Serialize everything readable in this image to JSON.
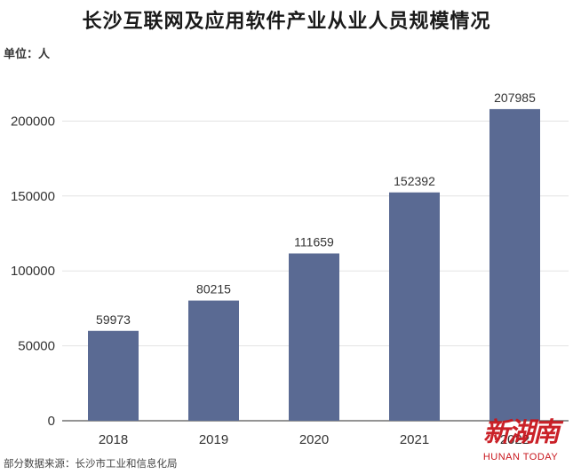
{
  "header": {
    "title": "长沙互联网及应用软件产业从业人员规模情况",
    "unit": "单位：人"
  },
  "footer": {
    "source": "部分数据来源：长沙市工业和信息化局"
  },
  "watermark": {
    "logo_text": "新湖南",
    "subtitle": "HUNAN TODAY"
  },
  "colors": {
    "bar": "#5a6a93",
    "grid": "#e3e3e3",
    "axis": "#555555",
    "watermark": "#c8161d"
  },
  "chart_data": {
    "type": "bar",
    "title": "长沙互联网及应用软件产业从业人员规模情况",
    "ylabel": "单位：人",
    "categories": [
      "2018",
      "2019",
      "2020",
      "2021",
      "2022"
    ],
    "values": [
      59973,
      80215,
      111659,
      152392,
      207985
    ],
    "ylim": [
      0,
      250000
    ],
    "yticks": [
      0,
      50000,
      100000,
      150000,
      200000
    ],
    "grid": true,
    "data_labels": true
  }
}
